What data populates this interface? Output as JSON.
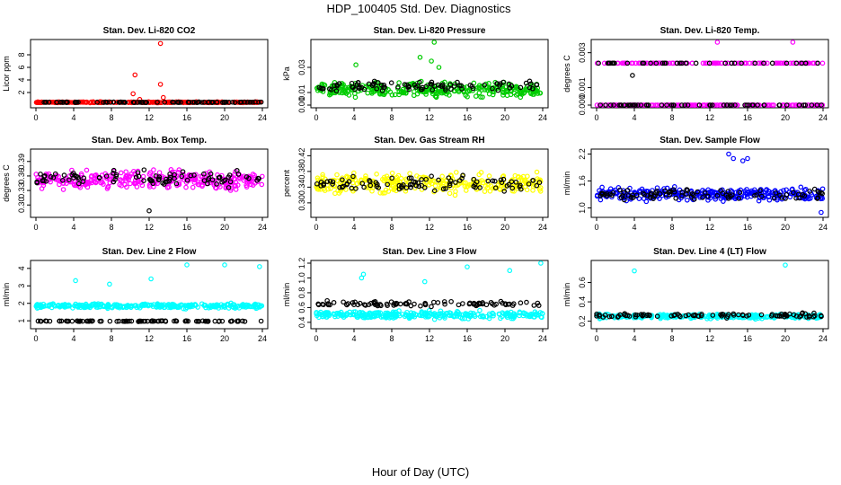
{
  "figure": {
    "title": "HDP_100405  Std. Dev. Diagnostics",
    "xlabel": "Hour of Day (UTC)"
  },
  "colors": {
    "reference_series": "#000000",
    "red": "#ff0000",
    "green": "#00cc00",
    "magenta": "#ff00ff",
    "yellow": "#ffff00",
    "blue": "#0000ff",
    "cyan": "#00ffff"
  },
  "chart_data": [
    {
      "type": "scatter",
      "title": "Stan. Dev. Li-820 CO2",
      "ylabel": "Licor ppm",
      "xlim": [
        0,
        24
      ],
      "ylim": [
        0,
        10
      ],
      "xticks": [
        "0",
        "4",
        "8",
        "12",
        "16",
        "20",
        "24"
      ],
      "yticks": [
        "2",
        "4",
        "6",
        "8"
      ],
      "color": "red",
      "series": [
        {
          "name": "colored",
          "base": 0.45,
          "spread": 0.1,
          "extras": [
            [
              13.2,
              9.8
            ],
            [
              10.5,
              4.8
            ],
            [
              13.2,
              3.3
            ],
            [
              10.3,
              1.8
            ],
            [
              13.5,
              1.2
            ],
            [
              11.0,
              0.9
            ]
          ]
        },
        {
          "name": "black",
          "base": 0.45,
          "spread": 0.06,
          "extras": []
        }
      ]
    },
    {
      "type": "scatter",
      "title": "Stan. Dev. Li-820 Pressure",
      "ylabel": "kPa",
      "xlim": [
        0,
        24
      ],
      "ylim": [
        0,
        0.05
      ],
      "xticks": [
        "0",
        "4",
        "8",
        "12",
        "16",
        "20",
        "24"
      ],
      "yticks": [
        "0.00",
        "0.01",
        "0.03"
      ],
      "color": "green",
      "series": [
        {
          "name": "colored",
          "base": 0.012,
          "spread": 0.008,
          "extras": [
            [
              12.5,
              0.05
            ],
            [
              11.0,
              0.038
            ],
            [
              12.2,
              0.035
            ],
            [
              4.2,
              0.032
            ],
            [
              13.0,
              0.03
            ]
          ]
        },
        {
          "name": "black",
          "base": 0.015,
          "spread": 0.006,
          "extras": []
        }
      ]
    },
    {
      "type": "scatter",
      "title": "Stan. Dev. Li-820 Temp.",
      "ylabel": "degrees C",
      "xlim": [
        0,
        24
      ],
      "ylim": [
        0,
        0.0036
      ],
      "xticks": [
        "0",
        "4",
        "8",
        "12",
        "16",
        "20",
        "24"
      ],
      "yticks": [
        "0.000",
        "0.001",
        "0.003"
      ],
      "color": "magenta",
      "series": [
        {
          "name": "colored",
          "levels": [
            0.0,
            0.0024
          ],
          "extras": [
            [
              12.8,
              0.0036
            ],
            [
              20.8,
              0.0036
            ]
          ]
        },
        {
          "name": "black",
          "levels": [
            0.0,
            0.0024
          ],
          "extras": [
            [
              3.8,
              0.0017
            ]
          ]
        }
      ]
    },
    {
      "type": "scatter",
      "title": "Stan. Dev. Amb. Box Temp.",
      "ylabel": "degrees C",
      "xlim": [
        0,
        24
      ],
      "ylim": [
        0.28,
        0.41
      ],
      "xticks": [
        "0",
        "4",
        "8",
        "12",
        "16",
        "20",
        "24"
      ],
      "yticks": [
        "0.30",
        "0.33",
        "0.36",
        "0.39"
      ],
      "color": "magenta",
      "series": [
        {
          "name": "colored",
          "base": 0.352,
          "spread": 0.028,
          "extras": []
        },
        {
          "name": "black",
          "base": 0.355,
          "spread": 0.022,
          "extras": [
            [
              12.0,
              0.288
            ]
          ]
        }
      ]
    },
    {
      "type": "scatter",
      "title": "Stan. Dev. Gas Stream RH",
      "ylabel": "percent",
      "xlim": [
        0,
        24
      ],
      "ylim": [
        0.27,
        0.43
      ],
      "xticks": [
        "0",
        "4",
        "8",
        "12",
        "16",
        "20",
        "24"
      ],
      "yticks": [
        "0.30",
        "0.34",
        "0.38",
        "0.42"
      ],
      "color": "yellow",
      "series": [
        {
          "name": "colored",
          "base": 0.35,
          "spread": 0.035,
          "extras": []
        },
        {
          "name": "black",
          "base": 0.35,
          "spread": 0.028,
          "extras": []
        }
      ]
    },
    {
      "type": "scatter",
      "title": "Stan. Dev. Sample Flow",
      "ylabel": "ml/min",
      "xlim": [
        0,
        24
      ],
      "ylim": [
        0.85,
        2.25
      ],
      "xticks": [
        "0",
        "4",
        "8",
        "12",
        "16",
        "20",
        "24"
      ],
      "yticks": [
        "1.0",
        "1.6",
        "2.2"
      ],
      "color": "blue",
      "series": [
        {
          "name": "colored",
          "base": 1.3,
          "spread": 0.2,
          "extras": [
            [
              14.0,
              2.2
            ],
            [
              14.5,
              2.1
            ],
            [
              16.0,
              2.1
            ],
            [
              15.5,
              2.05
            ],
            [
              23.8,
              0.9
            ]
          ]
        },
        {
          "name": "black",
          "base": 1.3,
          "spread": 0.15,
          "extras": []
        }
      ]
    },
    {
      "type": "scatter",
      "title": "Stan. Dev. Line 2 Flow",
      "ylabel": "ml/min",
      "xlim": [
        0,
        24
      ],
      "ylim": [
        0.7,
        4.3
      ],
      "xticks": [
        "0",
        "4",
        "8",
        "12",
        "16",
        "20",
        "24"
      ],
      "yticks": [
        "1",
        "2",
        "3",
        "4"
      ],
      "color": "cyan",
      "series": [
        {
          "name": "colored",
          "base": 1.85,
          "spread": 0.2,
          "extras": [
            [
              4.2,
              3.3
            ],
            [
              7.8,
              3.1
            ],
            [
              12.2,
              3.4
            ],
            [
              16.0,
              4.2
            ],
            [
              20.0,
              4.2
            ],
            [
              23.7,
              4.1
            ]
          ]
        },
        {
          "name": "black",
          "base": 0.98,
          "spread": 0.03,
          "extras": []
        }
      ]
    },
    {
      "type": "scatter",
      "title": "Stan. Dev. Line 3 Flow",
      "ylabel": "ml/min",
      "xlim": [
        0,
        24
      ],
      "ylim": [
        0.35,
        1.2
      ],
      "xticks": [
        "0",
        "4",
        "8",
        "12",
        "16",
        "20",
        "24"
      ],
      "yticks": [
        "0.4",
        "0.6",
        "0.8",
        "1.0",
        "1.2"
      ],
      "color": "cyan",
      "series": [
        {
          "name": "colored",
          "base": 0.5,
          "spread": 0.07,
          "extras": [
            [
              5.0,
              1.05
            ],
            [
              4.8,
              1.0
            ],
            [
              11.5,
              0.95
            ],
            [
              16.0,
              1.15
            ],
            [
              20.5,
              1.1
            ],
            [
              23.8,
              1.2
            ]
          ]
        },
        {
          "name": "black",
          "base": 0.65,
          "spread": 0.05,
          "extras": []
        }
      ]
    },
    {
      "type": "scatter",
      "title": "Stan. Dev. Line 4 (LT) Flow",
      "ylabel": "ml/min",
      "xlim": [
        0,
        24
      ],
      "ylim": [
        0.15,
        0.8
      ],
      "xticks": [
        "0",
        "4",
        "8",
        "12",
        "16",
        "20",
        "24"
      ],
      "yticks": [
        "0.2",
        "0.4",
        "0.6"
      ],
      "color": "cyan",
      "series": [
        {
          "name": "colored",
          "base": 0.25,
          "spread": 0.03,
          "extras": [
            [
              4.0,
              0.72
            ],
            [
              20.0,
              0.78
            ]
          ]
        },
        {
          "name": "black",
          "base": 0.26,
          "spread": 0.03,
          "extras": []
        }
      ]
    }
  ]
}
